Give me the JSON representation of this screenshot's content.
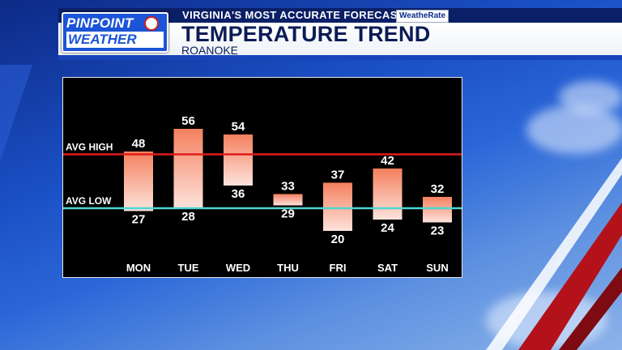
{
  "brand": {
    "logo_top": "PINPOINT",
    "logo_bottom": "WEATHER",
    "slogan": "VIRGINIA'S MOST ACCURATE FORECAST",
    "badge": "WeatheRate"
  },
  "header": {
    "title": "TEMPERATURE TREND",
    "subtitle": "ROANOKE"
  },
  "colors": {
    "avg_high_line": "#e01a1a",
    "avg_low_line": "#4fd6d0",
    "bar_top": "#f4805e",
    "bar_bottom": "#fde3dc",
    "panel_bg": "#000000"
  },
  "chart_data": {
    "type": "bar",
    "title": "TEMPERATURE TREND",
    "subtitle": "ROANOKE",
    "categories": [
      "MON",
      "TUE",
      "WED",
      "THU",
      "FRI",
      "SAT",
      "SUN"
    ],
    "series": [
      {
        "name": "High",
        "values": [
          48,
          56,
          54,
          33,
          37,
          42,
          32
        ]
      },
      {
        "name": "Low",
        "values": [
          27,
          28,
          36,
          29,
          20,
          24,
          23
        ]
      }
    ],
    "reference_lines": [
      {
        "label": "AVG HIGH",
        "value": 47
      },
      {
        "label": "AVG LOW",
        "value": 28
      }
    ],
    "ylim": [
      14,
      62
    ],
    "grid": false,
    "legend": "none"
  }
}
